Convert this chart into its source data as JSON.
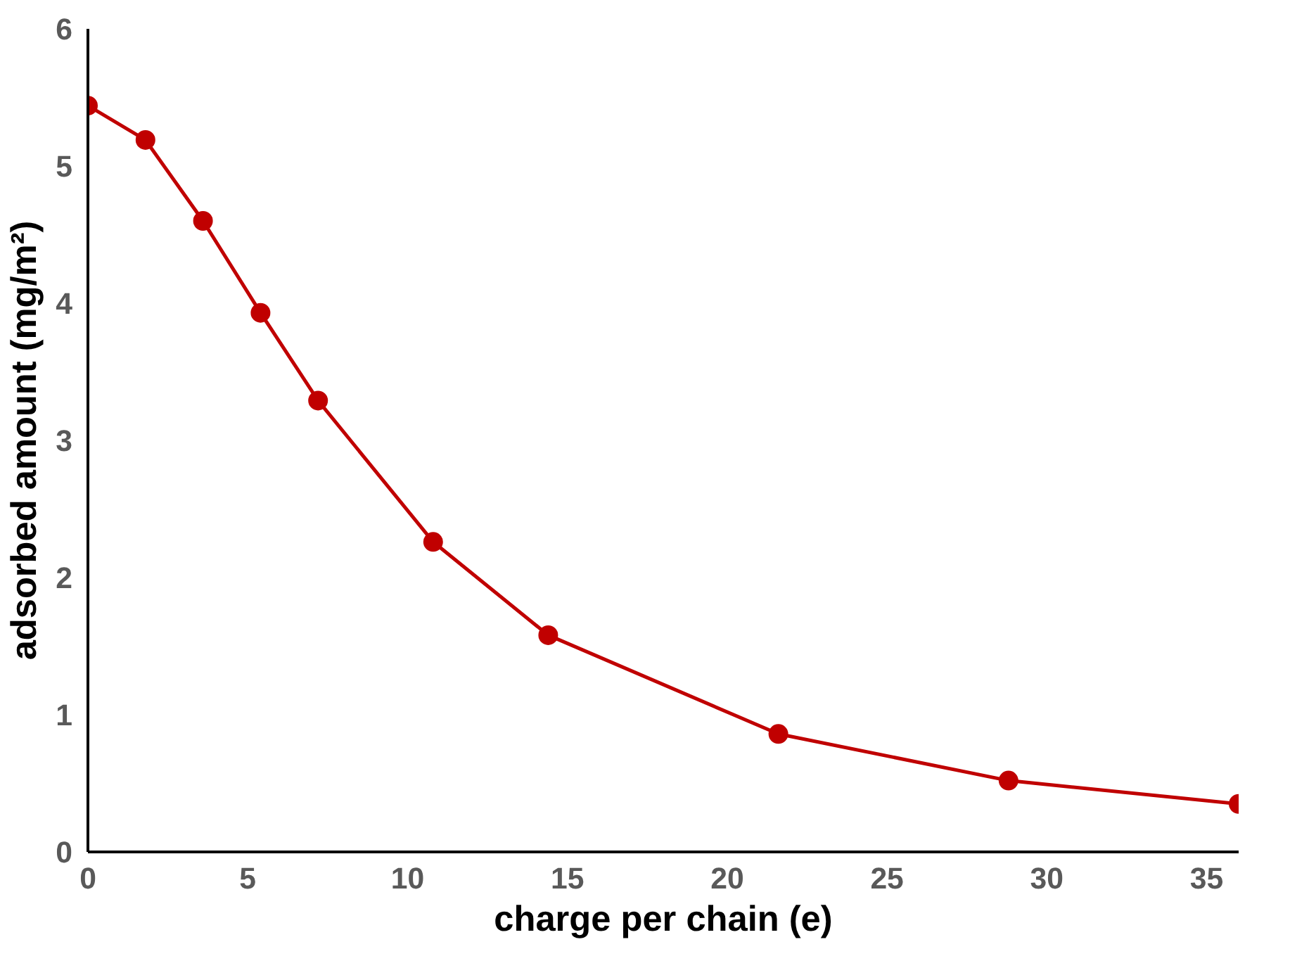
{
  "chart_data": {
    "type": "line",
    "xlabel": "charge per chain (e)",
    "ylabel": "adsorbed amount (mg/m²)",
    "x": [
      0,
      1.8,
      3.6,
      5.4,
      7.2,
      10.8,
      14.4,
      21.6,
      28.8,
      36
    ],
    "series": [
      {
        "color": "#c00000",
        "values": [
          5.44,
          5.19,
          4.6,
          3.93,
          3.29,
          2.26,
          1.58,
          0.86,
          0.52,
          0.35
        ]
      }
    ],
    "marker": "circle",
    "grid": false,
    "xlim": [
      0,
      36
    ],
    "ylim": [
      0,
      6
    ],
    "xticks": [
      0,
      5,
      10,
      15,
      20,
      25,
      30,
      35
    ],
    "yticks": [
      0,
      1,
      2,
      3,
      4,
      5,
      6
    ]
  }
}
